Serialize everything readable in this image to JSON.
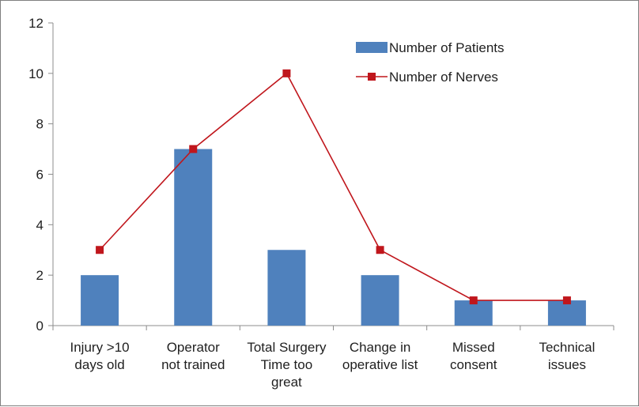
{
  "chart_data": {
    "type": "bar",
    "title": "",
    "xlabel": "",
    "ylabel": "",
    "ylim": [
      0,
      12
    ],
    "yticks": [
      "0",
      "2",
      "4",
      "6",
      "8",
      "10",
      "12"
    ],
    "categories": [
      [
        "Injury >10",
        "days old"
      ],
      [
        "Operator",
        "not trained"
      ],
      [
        "Total Surgery",
        "Time too",
        "great"
      ],
      [
        "Change in",
        "operative list"
      ],
      [
        "Missed",
        "consent"
      ],
      [
        "Technical",
        "issues"
      ]
    ],
    "series": [
      {
        "name": "Number of Patients",
        "type": "bar",
        "color": "#4f81bd",
        "values": [
          2,
          7,
          3,
          2,
          1,
          1
        ]
      },
      {
        "name": "Number of Nerves",
        "type": "line",
        "color": "#c0161c",
        "values": [
          3,
          7,
          10,
          3,
          1,
          1
        ]
      }
    ],
    "grid": false,
    "legend": "top-right"
  }
}
